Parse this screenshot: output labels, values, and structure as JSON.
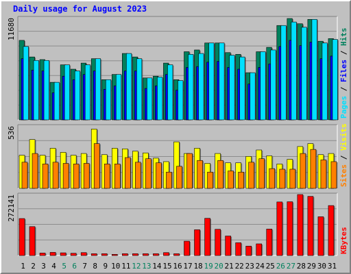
{
  "chart_data": {
    "type": "bar",
    "title": "Daily usage for August 2023",
    "categories": [
      "1",
      "2",
      "3",
      "4",
      "5",
      "6",
      "7",
      "8",
      "9",
      "10",
      "11",
      "12",
      "13",
      "14",
      "15",
      "16",
      "17",
      "18",
      "19",
      "20",
      "21",
      "22",
      "23",
      "24",
      "25",
      "26",
      "27",
      "28",
      "29",
      "30",
      "31"
    ],
    "weekend_days": [
      "5",
      "6",
      "12",
      "13",
      "19",
      "20",
      "26",
      "27"
    ],
    "panels": [
      {
        "id": "top",
        "max_label": "11680",
        "ylim": [
          0,
          11680
        ],
        "series": [
          {
            "name": "Hits",
            "color": "#00805c",
            "values": [
              9100,
              7200,
              6900,
              4300,
              6300,
              5800,
              6500,
              7000,
              4600,
              5200,
              7600,
              7200,
              4800,
              5000,
              6500,
              4600,
              7800,
              8000,
              8800,
              8800,
              7700,
              7500,
              5400,
              7800,
              8300,
              10800,
              11600,
              11000,
              11500,
              9000,
              9300
            ]
          },
          {
            "name": "Files",
            "color": "#0000ff",
            "values": [
              7000,
              5700,
              5600,
              3100,
              5000,
              4600,
              5200,
              5600,
              3500,
              3900,
              5600,
              5600,
              3600,
              3900,
              5200,
              3400,
              6000,
              6100,
              6600,
              6700,
              6000,
              5800,
              4100,
              6000,
              6400,
              8400,
              9100,
              8500,
              8900,
              7000,
              7300
            ]
          },
          {
            "name": "Pages",
            "color": "#00e0ff",
            "values": [
              8400,
              6800,
              6800,
              4300,
              6300,
              5600,
              6300,
              7000,
              4600,
              5200,
              7600,
              7000,
              4800,
              4900,
              6300,
              4500,
              7500,
              7600,
              8800,
              8800,
              7400,
              7200,
              5400,
              7800,
              8000,
              10800,
              11200,
              10600,
              11500,
              8800,
              9200
            ]
          }
        ],
        "legend_label": "Pages / Files / Hits",
        "legend_colors": [
          "#00e0ff",
          "#0000ff",
          "#00805c"
        ]
      },
      {
        "id": "middle",
        "max_label": "536",
        "ylim": [
          0,
          536
        ],
        "series": [
          {
            "name": "Visits",
            "color": "#ffff00",
            "values": [
              285,
              420,
              285,
              345,
              310,
              285,
              300,
              510,
              290,
              345,
              340,
              320,
              305,
              260,
              230,
              400,
              300,
              345,
              215,
              300,
              220,
              220,
              275,
              330,
              280,
              210,
              250,
              360,
              385,
              290,
              300
            ]
          },
          {
            "name": "Sites",
            "color": "#ff8000",
            "values": [
              225,
              300,
              210,
              225,
              215,
              210,
              215,
              385,
              210,
              210,
              265,
              225,
              255,
              220,
              140,
              190,
              300,
              240,
              140,
              240,
              150,
              140,
              225,
              255,
              170,
              165,
              165,
              300,
              335,
              245,
              230
            ]
          }
        ],
        "legend_label": "Sites / Visits",
        "legend_colors": [
          "#ff8000",
          "#ffff00"
        ]
      },
      {
        "id": "bottom",
        "max_label": "272141",
        "ylim": [
          0,
          272141
        ],
        "series": [
          {
            "name": "KBytes",
            "color": "#ff0000",
            "values": [
              165000,
              129000,
              11000,
              14000,
              12000,
              10000,
              13000,
              8000,
              8000,
              5000,
              8000,
              8000,
              8000,
              8000,
              13000,
              8000,
              64000,
              115000,
              166000,
              117000,
              87000,
              57000,
              42000,
              52000,
              118000,
              239000,
              240000,
              272141,
              264000,
              173000,
              223000
            ]
          }
        ],
        "legend_label": "KBytes",
        "legend_colors": [
          "#ff0000"
        ]
      }
    ],
    "xlabel": "",
    "ylabel": "",
    "grid": true,
    "colors": {
      "background": "#c0c0c0",
      "plot_border_dark": "#808080",
      "plot_border_light": "#ffffff",
      "title": "#0000ff",
      "axis_text": "#000000",
      "weekend_text": "#00805c",
      "gridline": "#8c8c8c"
    }
  }
}
